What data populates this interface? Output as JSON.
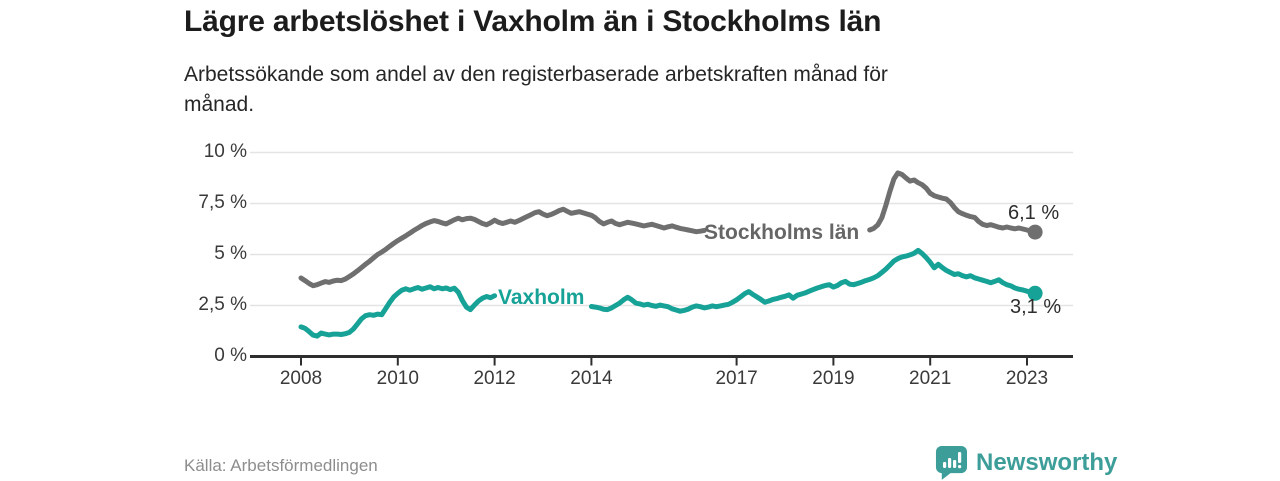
{
  "header": {
    "title": "Lägre arbetslöshet i Vaxholm än i Stockholms län",
    "subtitle": "Arbetssökande som andel av den registerbaserade arbetskraften månad för månad."
  },
  "footer": {
    "source": "Källa: Arbetsförmedlingen",
    "brand": "Newsworthy"
  },
  "colors": {
    "stockholm_line": "#6f6f6f",
    "stockholm_label": "#666666",
    "vaxholm_line": "#16a296",
    "brand_teal": "#3d9e99",
    "axis": "#2e2e2e",
    "grid": "#e4e4e4",
    "text_dark": "#1c1c1c"
  },
  "chart_data": {
    "type": "line",
    "title": "Lägre arbetslöshet i Vaxholm än i Stockholms län",
    "xlabel": "",
    "ylabel": "",
    "x_start_year": 2008.0,
    "x_step_years": 0.0833333,
    "xlim": [
      2006.95,
      2023.95
    ],
    "ylim": [
      0,
      10
    ],
    "grid": true,
    "legend_position": "inline-labels",
    "y_ticks": [
      {
        "value": 0,
        "label": "0 %"
      },
      {
        "value": 2.5,
        "label": "2,5 %"
      },
      {
        "value": 5,
        "label": "5 %"
      },
      {
        "value": 7.5,
        "label": "7,5 %"
      },
      {
        "value": 10,
        "label": "10 %"
      }
    ],
    "x_ticks": [
      {
        "year": 2008,
        "label": "2008"
      },
      {
        "year": 2010,
        "label": "2010"
      },
      {
        "year": 2012,
        "label": "2012"
      },
      {
        "year": 2014,
        "label": "2014"
      },
      {
        "year": 2017,
        "label": "2017"
      },
      {
        "year": 2019,
        "label": "2019"
      },
      {
        "year": 2021,
        "label": "2021"
      },
      {
        "year": 2023,
        "label": "2023"
      }
    ],
    "series": [
      {
        "name": "Stockholms län",
        "color": "#6f6f6f",
        "end_label": "6,1 %",
        "end_value": 6.1,
        "label_gap_indices": [
          101,
          140
        ],
        "values": [
          3.85,
          3.72,
          3.58,
          3.47,
          3.52,
          3.6,
          3.67,
          3.63,
          3.7,
          3.74,
          3.72,
          3.8,
          3.92,
          4.05,
          4.2,
          4.36,
          4.52,
          4.67,
          4.84,
          5.0,
          5.12,
          5.25,
          5.4,
          5.55,
          5.68,
          5.8,
          5.92,
          6.05,
          6.18,
          6.3,
          6.42,
          6.52,
          6.6,
          6.66,
          6.62,
          6.55,
          6.5,
          6.6,
          6.7,
          6.78,
          6.7,
          6.76,
          6.78,
          6.72,
          6.62,
          6.52,
          6.46,
          6.56,
          6.68,
          6.58,
          6.52,
          6.58,
          6.64,
          6.58,
          6.66,
          6.76,
          6.86,
          6.95,
          7.05,
          7.1,
          6.98,
          6.9,
          6.96,
          7.05,
          7.15,
          7.22,
          7.12,
          7.02,
          7.06,
          7.1,
          7.04,
          6.98,
          6.92,
          6.8,
          6.62,
          6.5,
          6.58,
          6.64,
          6.52,
          6.46,
          6.52,
          6.58,
          6.54,
          6.5,
          6.45,
          6.4,
          6.44,
          6.48,
          6.42,
          6.36,
          6.3,
          6.36,
          6.4,
          6.34,
          6.28,
          6.24,
          6.2,
          6.16,
          6.12,
          6.14,
          6.18,
          6.16,
          6.12,
          6.1,
          6.14,
          6.18,
          6.16,
          6.12,
          6.15,
          6.18,
          6.22,
          6.18,
          6.14,
          6.18,
          6.22,
          6.18,
          6.14,
          6.12,
          6.16,
          6.2,
          6.18,
          6.14,
          6.12,
          6.16,
          6.2,
          6.22,
          6.18,
          6.14,
          6.12,
          6.16,
          6.2,
          6.22,
          6.2,
          6.16,
          6.14,
          6.18,
          6.22,
          6.2,
          6.16,
          6.2,
          6.24,
          6.2,
          6.28,
          6.45,
          6.8,
          7.4,
          8.1,
          8.7,
          9.0,
          8.92,
          8.75,
          8.6,
          8.65,
          8.52,
          8.42,
          8.25,
          8.0,
          7.88,
          7.82,
          7.76,
          7.72,
          7.55,
          7.3,
          7.1,
          7.0,
          6.92,
          6.86,
          6.82,
          6.62,
          6.48,
          6.42,
          6.46,
          6.4,
          6.34,
          6.3,
          6.35,
          6.3,
          6.26,
          6.3,
          6.25,
          6.2,
          6.14,
          6.1
        ]
      },
      {
        "name": "Vaxholm",
        "color": "#16a296",
        "end_label": "3,1 %",
        "end_value": 3.1,
        "label_gap_indices": [
          49,
          71
        ],
        "values": [
          1.45,
          1.38,
          1.22,
          1.05,
          1.0,
          1.15,
          1.1,
          1.06,
          1.1,
          1.1,
          1.08,
          1.12,
          1.18,
          1.35,
          1.6,
          1.85,
          2.0,
          2.05,
          2.02,
          2.08,
          2.05,
          2.35,
          2.65,
          2.92,
          3.1,
          3.25,
          3.32,
          3.25,
          3.32,
          3.38,
          3.3,
          3.36,
          3.42,
          3.32,
          3.38,
          3.32,
          3.36,
          3.28,
          3.35,
          3.15,
          2.75,
          2.42,
          2.3,
          2.52,
          2.72,
          2.86,
          2.94,
          2.88,
          2.98,
          3.05,
          2.95,
          2.9,
          2.85,
          2.8,
          2.75,
          2.7,
          2.65,
          2.62,
          2.58,
          2.54,
          2.52,
          2.48,
          2.46,
          2.44,
          2.42,
          2.44,
          2.42,
          2.4,
          2.42,
          2.44,
          2.44,
          2.46,
          2.45,
          2.42,
          2.38,
          2.32,
          2.3,
          2.38,
          2.5,
          2.62,
          2.78,
          2.9,
          2.78,
          2.62,
          2.58,
          2.52,
          2.56,
          2.5,
          2.46,
          2.52,
          2.48,
          2.44,
          2.34,
          2.28,
          2.22,
          2.26,
          2.32,
          2.42,
          2.48,
          2.44,
          2.38,
          2.42,
          2.48,
          2.44,
          2.48,
          2.52,
          2.56,
          2.66,
          2.78,
          2.92,
          3.08,
          3.18,
          3.05,
          2.92,
          2.8,
          2.66,
          2.72,
          2.8,
          2.84,
          2.9,
          2.95,
          3.02,
          2.86,
          3.0,
          3.06,
          3.12,
          3.2,
          3.28,
          3.36,
          3.42,
          3.48,
          3.52,
          3.4,
          3.48,
          3.62,
          3.68,
          3.55,
          3.52,
          3.58,
          3.64,
          3.72,
          3.78,
          3.86,
          3.96,
          4.12,
          4.28,
          4.48,
          4.68,
          4.8,
          4.88,
          4.92,
          4.98,
          5.06,
          5.2,
          5.05,
          4.85,
          4.62,
          4.35,
          4.52,
          4.36,
          4.22,
          4.12,
          4.02,
          4.06,
          3.96,
          3.9,
          3.96,
          3.86,
          3.8,
          3.74,
          3.68,
          3.62,
          3.68,
          3.76,
          3.62,
          3.52,
          3.46,
          3.36,
          3.3,
          3.26,
          3.2,
          3.14,
          3.1
        ]
      }
    ]
  }
}
